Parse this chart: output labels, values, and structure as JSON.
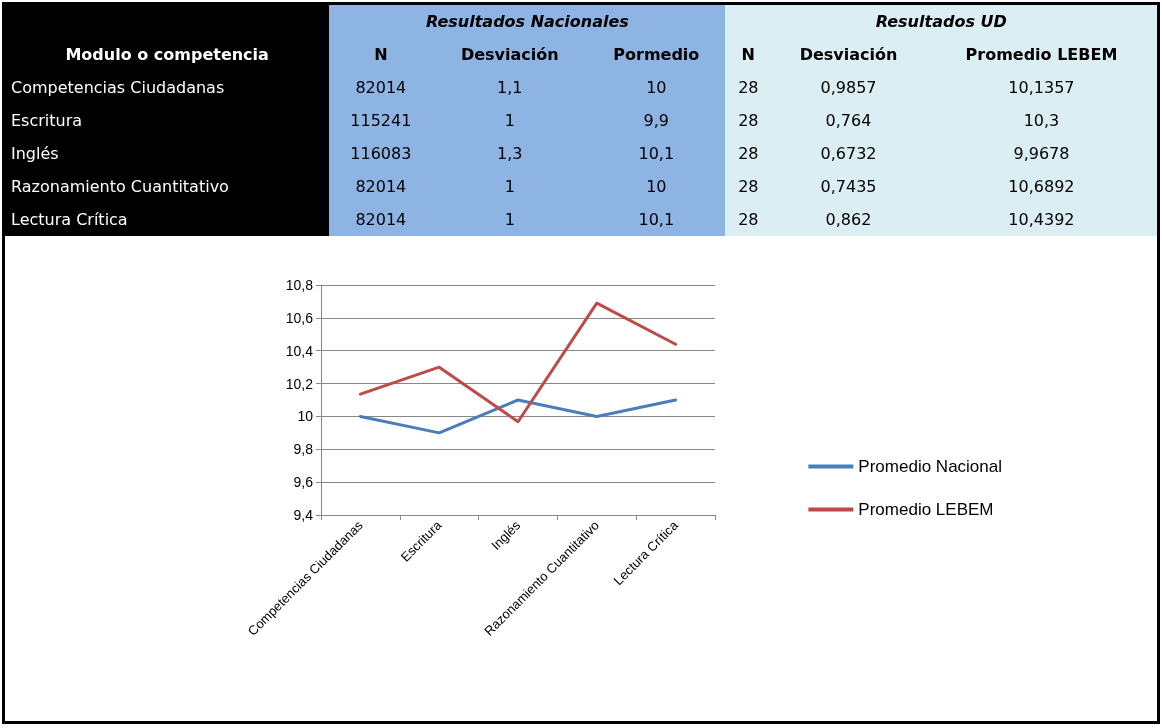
{
  "chart_data": [
    {
      "type": "other",
      "annotations": [
        "Resultados Nacionales",
        "Resultados UD",
        "Modulo o competencia",
        "N",
        "Desviación",
        "Pormedio",
        "N",
        "Desviación",
        "Promedio LEBEM",
        "Competencias Ciudadanas",
        "82014",
        "1,1",
        "10",
        "28",
        "0,9857",
        "10,1357",
        "Escritura",
        "115241",
        "1",
        "9,9",
        "28",
        "0,764",
        "10,3",
        "Inglés",
        "116083",
        "1,3",
        "10,1",
        "28",
        "0,6732",
        "9,9678",
        "Razonamiento Cuantitativo",
        "82014",
        "1",
        "10",
        "28",
        "0,7435",
        "10,6892",
        "Lectura Crítica",
        "82014",
        "1",
        "10,1",
        "28",
        "0,862",
        "10,4392"
      ]
    },
    {
      "type": "line",
      "categories": [
        "Competencias Ciudadanas",
        "Escritura",
        "Inglés",
        "Razonamiento Cuantitativo",
        "Lectura Crítica"
      ],
      "series": [
        {
          "name": "Promedio Nacional",
          "color": "#4a7ebb",
          "values": [
            10,
            9.9,
            10.1,
            10,
            10.1
          ]
        },
        {
          "name": "Promedio LEBEM",
          "color": "#be4b48",
          "values": [
            10.1357,
            10.3,
            9.9678,
            10.6892,
            10.4392
          ]
        }
      ],
      "ylim": [
        9.4,
        10.8
      ],
      "yticks": [
        {
          "value": 9.4,
          "label": "9,4"
        },
        {
          "value": 9.6,
          "label": "9,6"
        },
        {
          "value": 9.8,
          "label": "9,8"
        },
        10,
        {
          "value": 10.2,
          "label": "10,2"
        },
        {
          "value": 10.4,
          "label": "10,4"
        },
        {
          "value": 10.6,
          "label": "10,6"
        },
        {
          "value": 10.8,
          "label": "10,8"
        }
      ],
      "grid": "y",
      "legend": "right",
      "marker": "none",
      "line_style": "solid"
    }
  ]
}
